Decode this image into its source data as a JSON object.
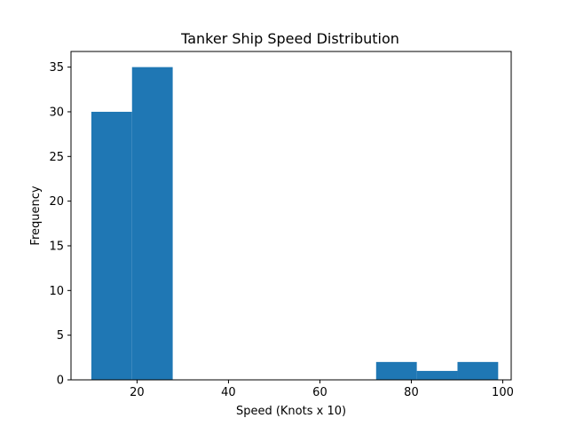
{
  "chart_data": {
    "type": "bar",
    "title": "Tanker Ship Speed Distribution",
    "xlabel": "Speed (Knots x 10)",
    "ylabel": "Frequency",
    "xlim": [
      5.55,
      101.85
    ],
    "ylim": [
      0,
      36.75
    ],
    "xticks": [
      20,
      40,
      60,
      80,
      100
    ],
    "yticks": [
      0,
      5,
      10,
      15,
      20,
      25,
      30,
      35
    ],
    "bins": [
      {
        "x0": 10.0,
        "x1": 18.9,
        "value": 30
      },
      {
        "x0": 18.9,
        "x1": 27.8,
        "value": 35
      },
      {
        "x0": 27.8,
        "x1": 36.7,
        "value": 0
      },
      {
        "x0": 36.7,
        "x1": 45.6,
        "value": 0
      },
      {
        "x0": 45.6,
        "x1": 54.5,
        "value": 0
      },
      {
        "x0": 54.5,
        "x1": 63.4,
        "value": 0
      },
      {
        "x0": 63.4,
        "x1": 72.3,
        "value": 0
      },
      {
        "x0": 72.3,
        "x1": 81.2,
        "value": 2
      },
      {
        "x0": 81.2,
        "x1": 90.1,
        "value": 1
      },
      {
        "x0": 90.1,
        "x1": 99.0,
        "value": 2
      }
    ],
    "bar_color": "#1f77b4",
    "grid": false,
    "legend": false
  }
}
